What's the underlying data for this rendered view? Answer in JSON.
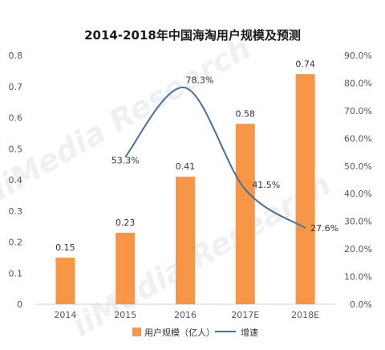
{
  "chart_data": {
    "type": "bar+line",
    "title": "2014-2018年中国海淘用户规模及预测",
    "categories": [
      "2014",
      "2015",
      "2016",
      "2017E",
      "2018E"
    ],
    "bar_series": {
      "name": "用户规模（亿人）",
      "values": [
        0.15,
        0.23,
        0.41,
        0.58,
        0.74
      ],
      "color": "#F79646"
    },
    "line_series": {
      "name": "增速",
      "values": [
        null,
        53.3,
        78.3,
        41.5,
        27.6
      ],
      "color": "#4A6E9A"
    },
    "bar_labels": [
      "0.15",
      "0.23",
      "0.41",
      "0.58",
      "0.74"
    ],
    "line_labels": [
      "",
      "53.3%",
      "78.3%",
      "41.5%",
      "27.6%"
    ],
    "left_axis": {
      "range": [
        0,
        0.8
      ],
      "ticks": [
        "0",
        "0.1",
        "0.2",
        "0.3",
        "0.4",
        "0.5",
        "0.6",
        "0.7",
        "0.8"
      ]
    },
    "right_axis": {
      "range": [
        0,
        90
      ],
      "ticks": [
        "0.0%",
        "10.0%",
        "20.0%",
        "30.0%",
        "40.0%",
        "50.0%",
        "60.0%",
        "70.0%",
        "80.0%",
        "90.0%"
      ]
    },
    "legend_position": "bottom",
    "grid": false
  }
}
